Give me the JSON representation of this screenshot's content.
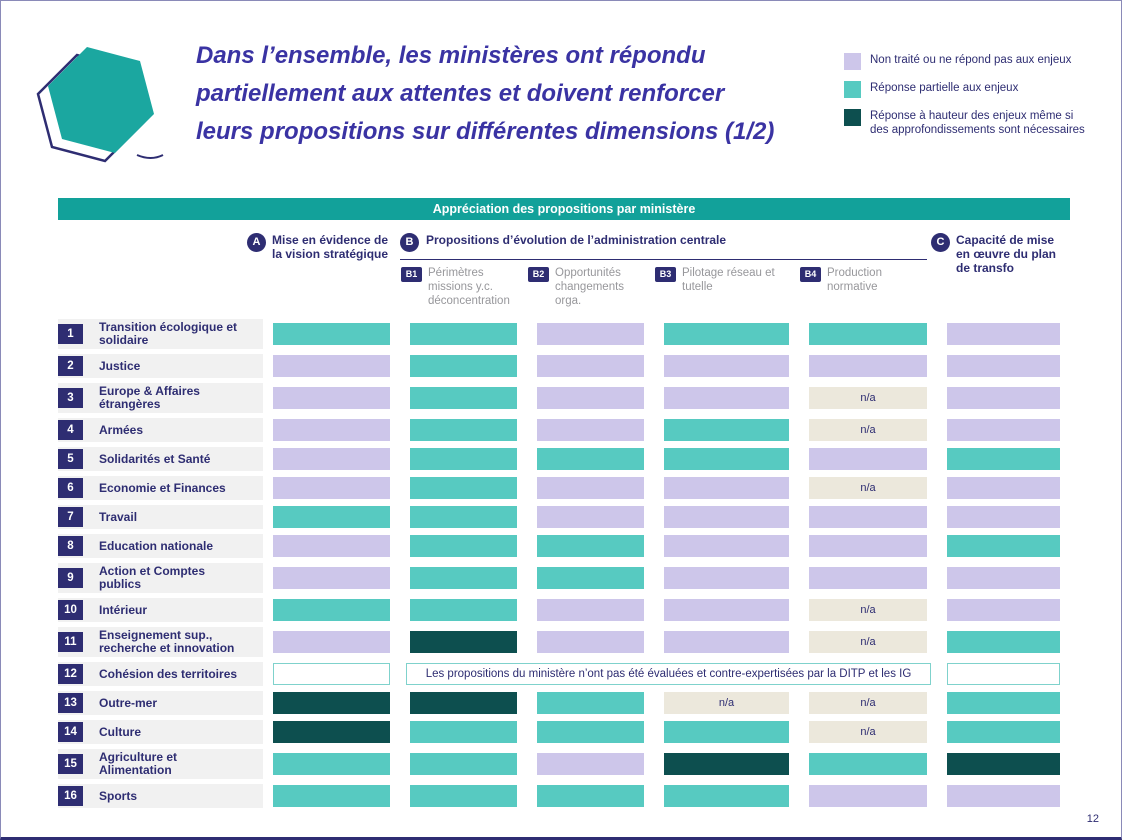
{
  "title": {
    "lines": [
      "Dans l’ensemble, les ministères ont répondu",
      "partiellement aux attentes et doivent renforcer",
      "leurs propositions sur différentes dimensions (1/2)"
    ]
  },
  "legend": {
    "items": [
      {
        "key": "none",
        "color": "#cdc6ea",
        "label": "Non traité ou ne répond pas aux enjeux"
      },
      {
        "key": "partial",
        "color": "#57cac1",
        "label": "Réponse partielle aux enjeux"
      },
      {
        "key": "full",
        "color": "#0d4f4f",
        "label": "Réponse à hauteur des enjeux même si des approfondissements sont nécessaires"
      }
    ]
  },
  "band_title": "Appréciation des propositions par ministère",
  "columns": {
    "a": {
      "badge": "A",
      "label": "Mise en évidence de la vision stratégique"
    },
    "b": {
      "badge": "B",
      "label": "Propositions d’évolution de l’administration centrale",
      "subcolumns": [
        {
          "badge": "B1",
          "label": "Périmètres missions y.c. déconcentration"
        },
        {
          "badge": "B2",
          "label": "Opportunités changements orga."
        },
        {
          "badge": "B3",
          "label": "Pilotage réseau et tutelle"
        },
        {
          "badge": "B4",
          "label": "Production normative"
        }
      ]
    },
    "c": {
      "badge": "C",
      "label": "Capacité de mise en œuvre du plan de transfo"
    }
  },
  "na_label": "n/a",
  "colors": {
    "none": "#cdc6ea",
    "partial": "#57cac1",
    "full": "#0d4f4f",
    "na_bg": "#ece8dc",
    "band": "#12a19a",
    "navy": "#2e2d72",
    "title": "#3a33a3",
    "note_border": "#7fd2cc"
  },
  "rows": [
    {
      "num": "1",
      "name": "Transition écologique et solidaire",
      "cells": [
        "partial",
        "partial",
        "none",
        "partial",
        "partial",
        "none"
      ]
    },
    {
      "num": "2",
      "name": "Justice",
      "cells": [
        "none",
        "partial",
        "none",
        "none",
        "none",
        "none"
      ]
    },
    {
      "num": "3",
      "name": "Europe & Affaires étrangères",
      "cells": [
        "none",
        "partial",
        "none",
        "none",
        "na",
        "none"
      ]
    },
    {
      "num": "4",
      "name": "Armées",
      "cells": [
        "none",
        "partial",
        "none",
        "partial",
        "na",
        "none"
      ]
    },
    {
      "num": "5",
      "name": "Solidarités et Santé",
      "cells": [
        "none",
        "partial",
        "partial",
        "partial",
        "none",
        "partial"
      ]
    },
    {
      "num": "6",
      "name": "Economie et Finances",
      "cells": [
        "none",
        "partial",
        "none",
        "none",
        "na",
        "none"
      ]
    },
    {
      "num": "7",
      "name": "Travail",
      "cells": [
        "partial",
        "partial",
        "none",
        "none",
        "none",
        "none"
      ]
    },
    {
      "num": "8",
      "name": "Education nationale",
      "cells": [
        "none",
        "partial",
        "partial",
        "none",
        "none",
        "partial"
      ]
    },
    {
      "num": "9",
      "name": "Action et Comptes publics",
      "cells": [
        "none",
        "partial",
        "partial",
        "none",
        "none",
        "none"
      ]
    },
    {
      "num": "10",
      "name": "Intérieur",
      "cells": [
        "partial",
        "partial",
        "none",
        "none",
        "na",
        "none"
      ]
    },
    {
      "num": "11",
      "name": "Enseignement sup., recherche et innovation",
      "cells": [
        "none",
        "full",
        "none",
        "none",
        "na",
        "partial"
      ]
    },
    {
      "num": "12",
      "name": "Cohésion des territoires",
      "message": "Les propositions du ministère n’ont pas été évaluées et contre-expertisées par la DITP et les IG"
    },
    {
      "num": "13",
      "name": "Outre-mer",
      "cells": [
        "full",
        "full",
        "partial",
        "na",
        "na",
        "partial"
      ]
    },
    {
      "num": "14",
      "name": "Culture",
      "cells": [
        "full",
        "partial",
        "partial",
        "partial",
        "na",
        "partial"
      ]
    },
    {
      "num": "15",
      "name": "Agriculture et Alimentation",
      "cells": [
        "partial",
        "partial",
        "none",
        "full",
        "partial",
        "full"
      ]
    },
    {
      "num": "16",
      "name": "Sports",
      "cells": [
        "partial",
        "partial",
        "partial",
        "partial",
        "none",
        "none"
      ]
    }
  ],
  "page_number": "12"
}
